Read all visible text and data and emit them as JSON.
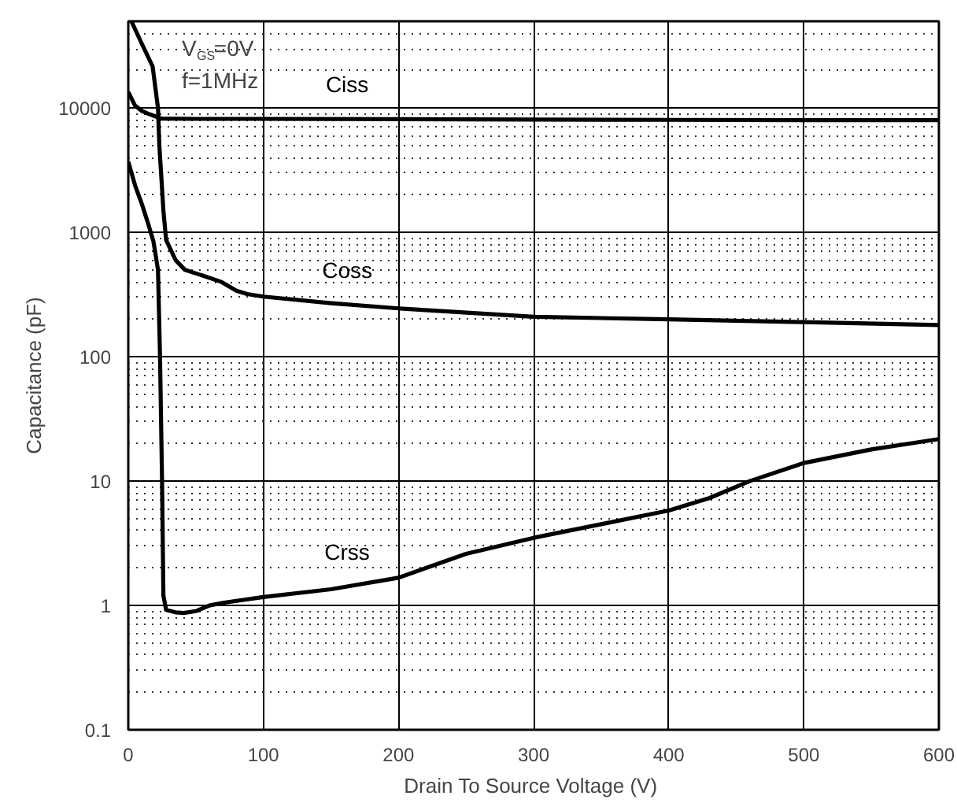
{
  "chart_data": {
    "type": "line",
    "xlabel": "Drain To Source Voltage  (V)",
    "ylabel": "Capacitance (pF)",
    "xlim": [
      0,
      600
    ],
    "ylim": [
      0.1,
      50000
    ],
    "xticks": [
      0,
      100,
      200,
      300,
      400,
      500,
      600
    ],
    "yticks": [
      0.1,
      1,
      10,
      100,
      1000,
      10000
    ],
    "log": "y",
    "grid": true,
    "line_style": "solid",
    "marker": "none",
    "series": [
      {
        "name": "Ciss",
        "color": "#000000",
        "x": [
          0,
          5,
          10,
          15,
          20,
          23,
          25,
          50,
          100,
          200,
          300,
          400,
          500,
          600
        ],
        "values": [
          13500,
          10500,
          9500,
          9000,
          8600,
          8300,
          8250,
          8200,
          8200,
          8150,
          8100,
          8050,
          8000,
          8000
        ]
      },
      {
        "name": "Coss",
        "color": "#000000",
        "x": [
          2.3,
          10,
          18,
          22,
          23,
          26,
          28,
          35,
          42,
          55,
          69,
          80,
          88,
          100,
          150,
          200,
          300,
          400,
          500,
          600
        ],
        "values": [
          50000,
          33000,
          21700,
          10000,
          5000,
          1500,
          870,
          600,
          500,
          450,
          400,
          340,
          320,
          305,
          270,
          245,
          210,
          200,
          190,
          180
        ]
      },
      {
        "name": "Crss",
        "color": "#000000",
        "x": [
          0,
          5,
          10,
          15,
          18.6,
          22,
          23.5,
          25,
          26,
          28,
          35,
          41,
          50,
          60,
          70,
          100,
          150,
          200,
          250,
          300,
          350,
          400,
          430,
          460,
          500,
          550,
          600
        ],
        "values": [
          3700,
          2400,
          1700,
          1150,
          850,
          500,
          100,
          10,
          1.2,
          0.92,
          0.88,
          0.87,
          0.9,
          1.0,
          1.05,
          1.17,
          1.35,
          1.67,
          2.6,
          3.5,
          4.5,
          5.8,
          7.3,
          10,
          14,
          18,
          21.8
        ]
      }
    ],
    "annotations": [
      "V$_{GS}$=0V",
      "f=1MHz"
    ]
  }
}
